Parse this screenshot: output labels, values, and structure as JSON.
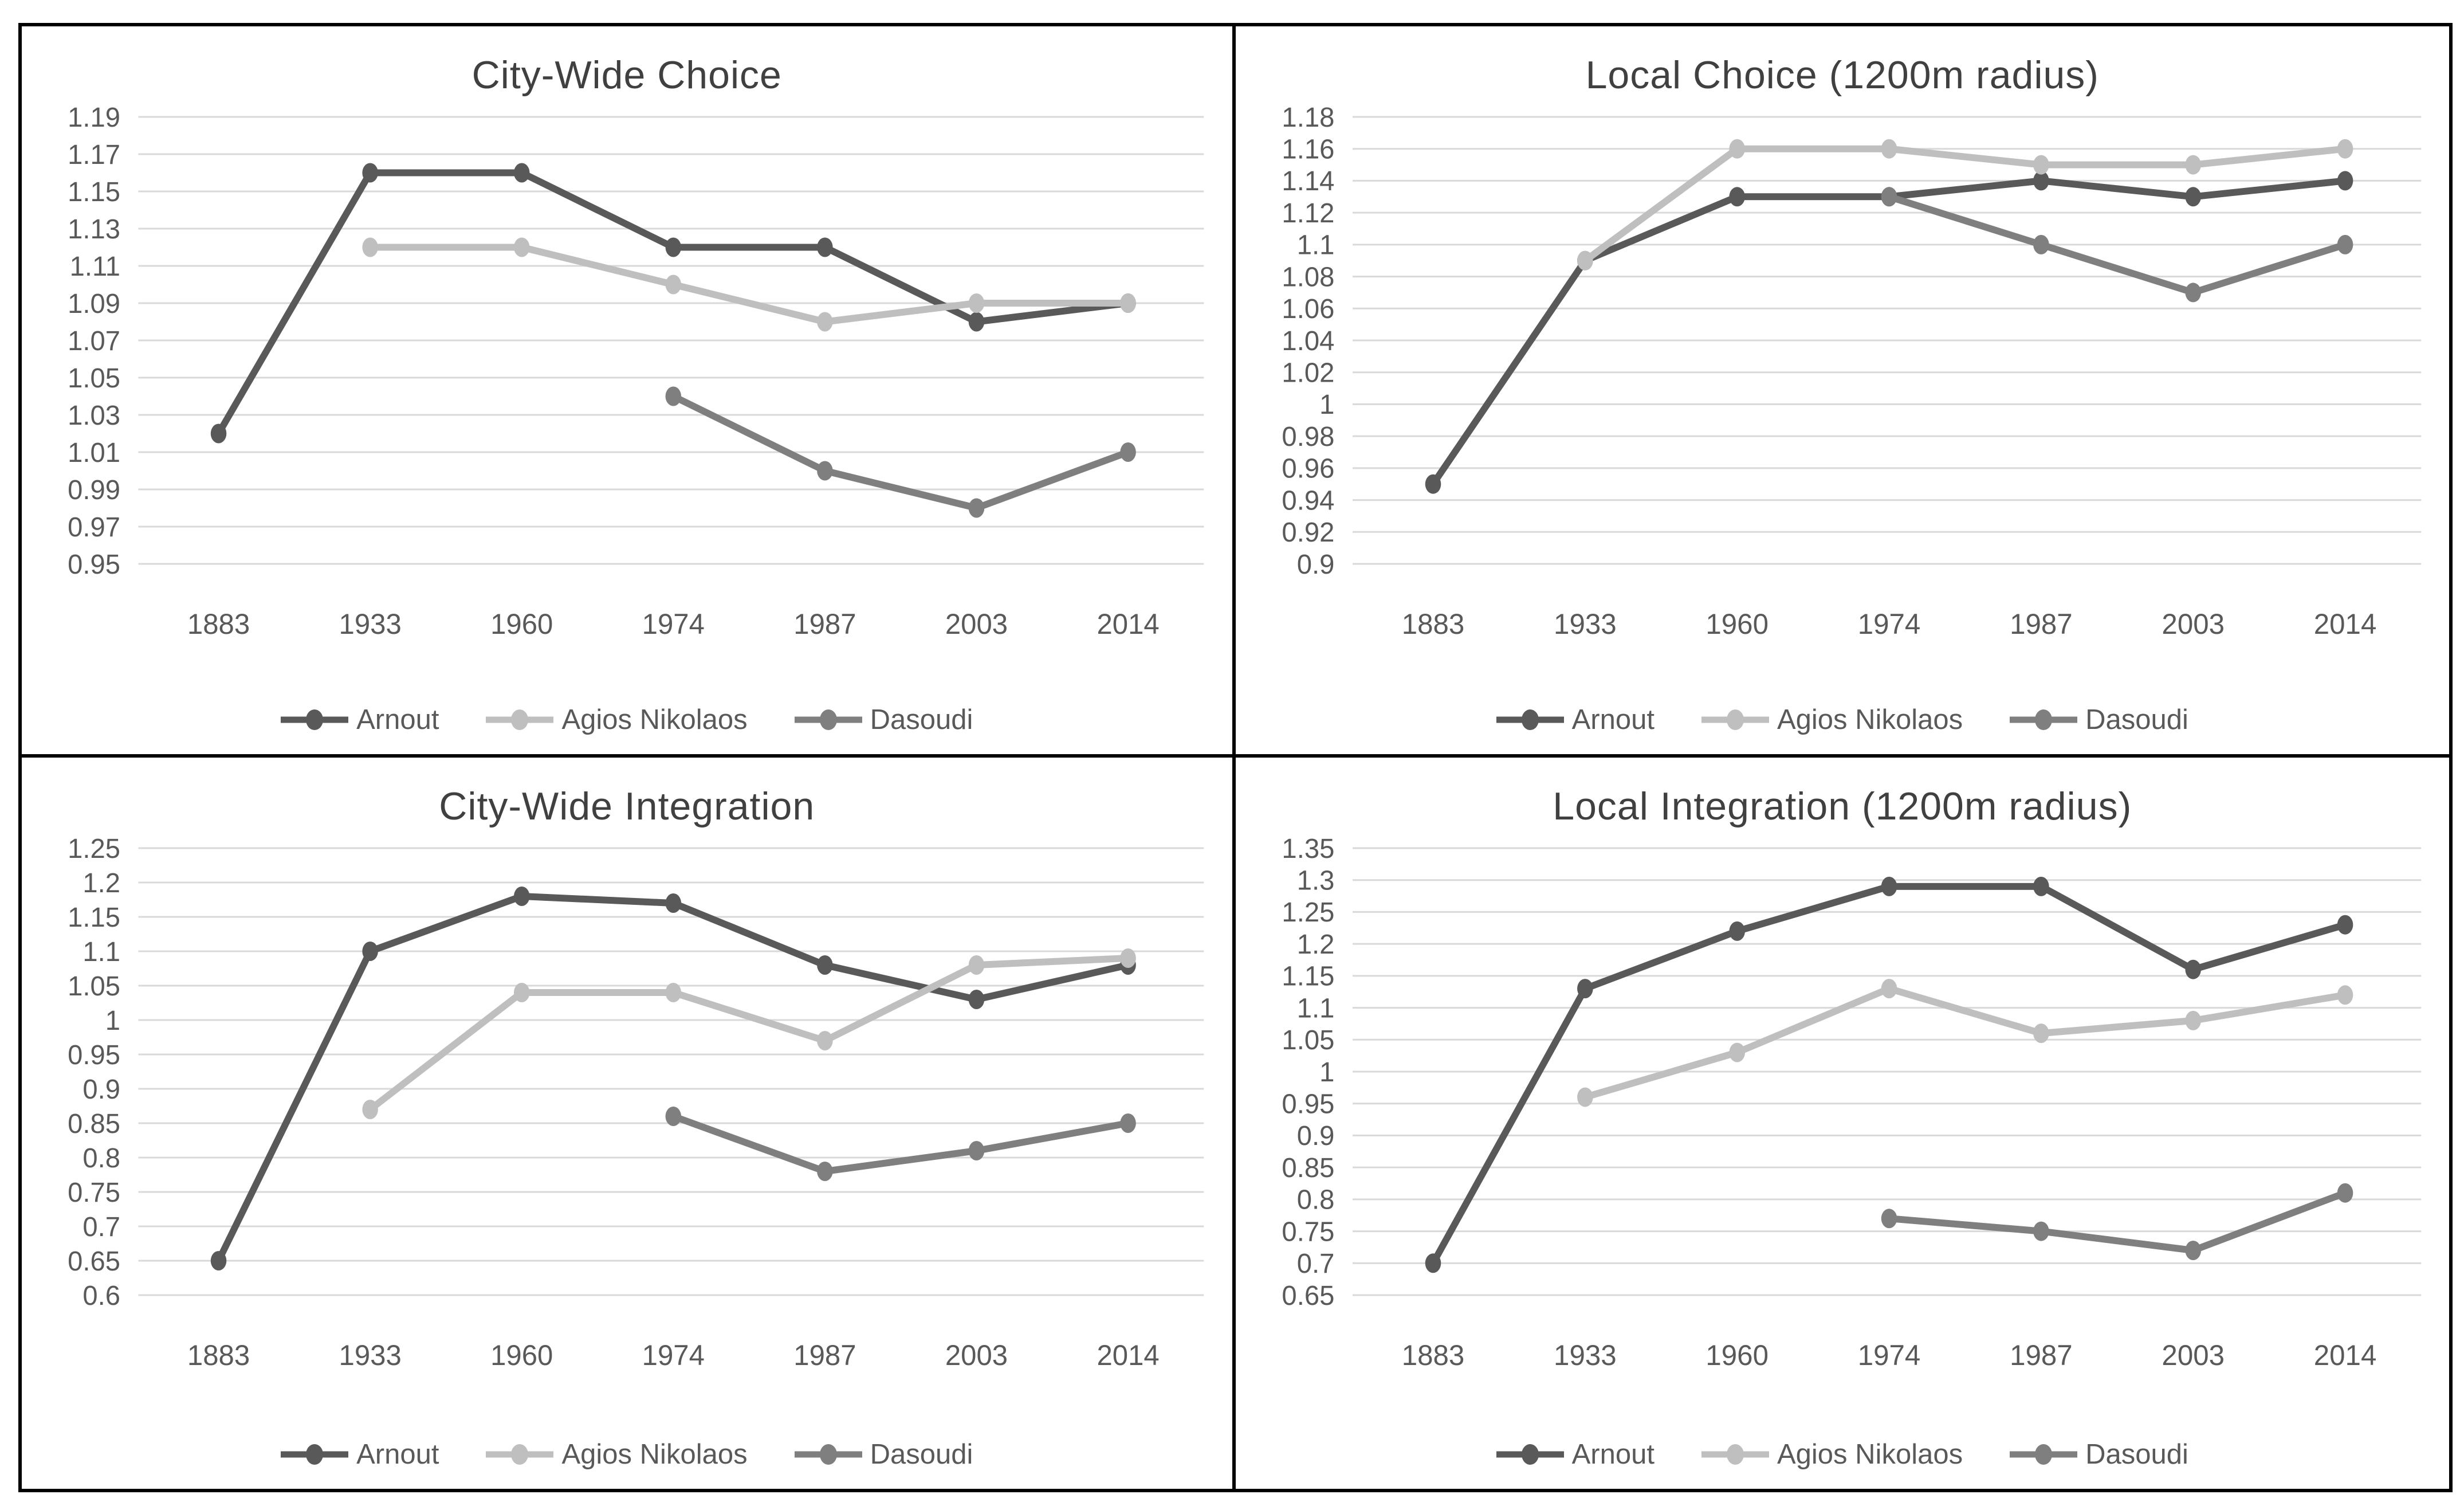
{
  "figure": {
    "background": "#ffffff",
    "outer_border_color": "#000000",
    "divider_color": "#000000",
    "grid_color": "#d9d9d9",
    "tick_label_color": "#595959",
    "title_color": "#404040",
    "legend_label_color": "#595959"
  },
  "chart_data": [
    {
      "type": "line",
      "title": "City-Wide Choice",
      "xlabel": "",
      "ylabel": "",
      "grid": true,
      "legend_position": "bottom",
      "categories": [
        "1883",
        "1933",
        "1960",
        "1974",
        "1987",
        "2003",
        "2014"
      ],
      "y_min": 0.95,
      "y_max": 1.19,
      "y_tick_step": 0.02,
      "y_tick_labels": [
        "1.19",
        "1.17",
        "1.15",
        "1.13",
        "1.11",
        "1.09",
        "1.07",
        "1.05",
        "1.03",
        "1.01",
        "0.99",
        "0.97",
        "0.95"
      ],
      "series": [
        {
          "name": "Arnout",
          "color": "#595959",
          "values": [
            1.02,
            1.16,
            1.16,
            1.12,
            1.12,
            1.08,
            1.09
          ]
        },
        {
          "name": "Agios Nikolaos",
          "color": "#bfbfbf",
          "values": [
            null,
            1.12,
            1.12,
            1.1,
            1.08,
            1.09,
            1.09
          ]
        },
        {
          "name": "Dasoudi",
          "color": "#7f7f7f",
          "values": [
            null,
            null,
            null,
            1.04,
            1.0,
            0.98,
            1.01
          ]
        }
      ]
    },
    {
      "type": "line",
      "title": "Local Choice (1200m radius)",
      "xlabel": "",
      "ylabel": "",
      "grid": true,
      "legend_position": "bottom",
      "categories": [
        "1883",
        "1933",
        "1960",
        "1974",
        "1987",
        "2003",
        "2014"
      ],
      "y_min": 0.9,
      "y_max": 1.18,
      "y_tick_step": 0.02,
      "y_tick_labels": [
        "1.18",
        "1.16",
        "1.14",
        "1.12",
        "1.1",
        "1.08",
        "1.06",
        "1.04",
        "1.02",
        "1",
        "0.98",
        "0.96",
        "0.94",
        "0.92",
        "0.9"
      ],
      "series": [
        {
          "name": "Arnout",
          "color": "#595959",
          "values": [
            0.95,
            1.09,
            1.13,
            1.13,
            1.14,
            1.13,
            1.14
          ]
        },
        {
          "name": "Agios Nikolaos",
          "color": "#bfbfbf",
          "values": [
            null,
            1.09,
            1.16,
            1.16,
            1.15,
            1.15,
            1.16
          ]
        },
        {
          "name": "Dasoudi",
          "color": "#7f7f7f",
          "values": [
            null,
            null,
            null,
            1.13,
            1.1,
            1.07,
            1.1
          ]
        }
      ]
    },
    {
      "type": "line",
      "title": "City-Wide Integration",
      "xlabel": "",
      "ylabel": "",
      "grid": true,
      "legend_position": "bottom",
      "categories": [
        "1883",
        "1933",
        "1960",
        "1974",
        "1987",
        "2003",
        "2014"
      ],
      "y_min": 0.6,
      "y_max": 1.25,
      "y_tick_step": 0.05,
      "y_tick_labels": [
        "1.25",
        "1.2",
        "1.15",
        "1.1",
        "1.05",
        "1",
        "0.95",
        "0.9",
        "0.85",
        "0.8",
        "0.75",
        "0.7",
        "0.65",
        "0.6"
      ],
      "series": [
        {
          "name": "Arnout",
          "color": "#595959",
          "values": [
            0.65,
            1.1,
            1.18,
            1.17,
            1.08,
            1.03,
            1.08
          ]
        },
        {
          "name": "Agios Nikolaos",
          "color": "#bfbfbf",
          "values": [
            null,
            0.87,
            1.04,
            1.04,
            0.97,
            1.08,
            1.09
          ]
        },
        {
          "name": "Dasoudi",
          "color": "#7f7f7f",
          "values": [
            null,
            null,
            null,
            0.86,
            0.78,
            0.81,
            0.85
          ]
        }
      ]
    },
    {
      "type": "line",
      "title": "Local Integration (1200m radius)",
      "xlabel": "",
      "ylabel": "",
      "grid": true,
      "legend_position": "bottom",
      "categories": [
        "1883",
        "1933",
        "1960",
        "1974",
        "1987",
        "2003",
        "2014"
      ],
      "y_min": 0.65,
      "y_max": 1.35,
      "y_tick_step": 0.05,
      "y_tick_labels": [
        "1.35",
        "1.3",
        "1.25",
        "1.2",
        "1.15",
        "1.1",
        "1.05",
        "1",
        "0.95",
        "0.9",
        "0.85",
        "0.8",
        "0.75",
        "0.7",
        "0.65"
      ],
      "series": [
        {
          "name": "Arnout",
          "color": "#595959",
          "values": [
            0.7,
            1.13,
            1.22,
            1.29,
            1.29,
            1.16,
            1.23
          ]
        },
        {
          "name": "Agios Nikolaos",
          "color": "#bfbfbf",
          "values": [
            null,
            0.96,
            1.03,
            1.13,
            1.06,
            1.08,
            1.12
          ]
        },
        {
          "name": "Dasoudi",
          "color": "#7f7f7f",
          "values": [
            null,
            null,
            null,
            0.77,
            0.75,
            0.72,
            0.81
          ]
        }
      ]
    }
  ]
}
